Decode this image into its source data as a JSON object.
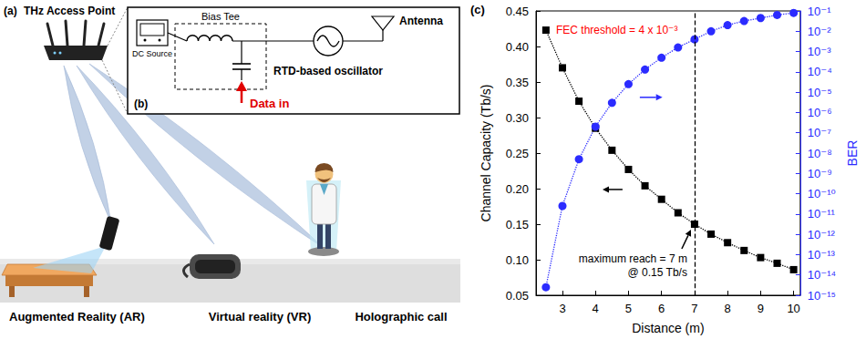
{
  "diagram": {
    "panel_a": {
      "label": "(a)",
      "title": "THz Access Point",
      "devices": [
        "Augmented Reality (AR)",
        "Virtual reality (VR)",
        "Holographic call"
      ]
    },
    "panel_b": {
      "label": "(b)",
      "bias_tee": "Bias Tee",
      "dc_source": "DC Source",
      "oscillator": "RTD-based oscillator",
      "antenna": "Antenna",
      "input": "Data in"
    }
  },
  "chart_data": {
    "type": "line",
    "panel_label": "(c)",
    "x_label": "Distance (m)",
    "y_label": "Channel Capacity (Tb/s)",
    "y2_label": "BER",
    "x": [
      2.5,
      3,
      3.5,
      4,
      4.5,
      5,
      5.5,
      6,
      6.5,
      7,
      7.5,
      8,
      8.5,
      9,
      9.5,
      10
    ],
    "series": [
      {
        "color": "#000000",
        "marker": "square",
        "line_style": "dotted",
        "values": [
          0.423,
          0.37,
          0.323,
          0.285,
          0.254,
          0.227,
          0.204,
          0.185,
          0.166,
          0.15,
          0.136,
          0.124,
          0.113,
          0.103,
          0.095,
          0.086
        ]
      },
      {
        "color": "#2b2bff",
        "marker": "circle",
        "line_style": "dotted",
        "axis": "y2",
        "values": [
          2.5e-15,
          2.5e-11,
          5e-09,
          2e-07,
          3e-06,
          2.5e-05,
          0.00013,
          0.0005,
          0.0016,
          0.004,
          0.01,
          0.02,
          0.032,
          0.045,
          0.063,
          0.08
        ]
      }
    ],
    "xlim": [
      2.2,
      10.2
    ],
    "xticks": [
      3,
      4,
      5,
      6,
      7,
      8,
      9,
      10
    ],
    "ylim": [
      0.05,
      0.45
    ],
    "yticks": [
      0.05,
      {
        "value": 0.1,
        "label": "0.10"
      },
      0.15,
      {
        "value": 0.2,
        "label": "0.20"
      },
      0.25,
      {
        "value": 0.3,
        "label": "0.30"
      },
      0.35,
      {
        "value": 0.4,
        "label": "0.40"
      },
      0.45
    ],
    "y2lim": [
      1e-15,
      0.1
    ],
    "y2ticks": [
      {
        "value": 1e-15,
        "label": "10⁻¹⁵"
      },
      {
        "value": 1e-14,
        "label": "10⁻¹⁴"
      },
      {
        "value": 1e-13,
        "label": "10⁻¹³"
      },
      {
        "value": 1e-12,
        "label": "10⁻¹²"
      },
      {
        "value": 1e-11,
        "label": "10⁻¹¹"
      },
      {
        "value": 1e-10,
        "label": "10⁻¹⁰"
      },
      {
        "value": 1e-09,
        "label": "10⁻⁹"
      },
      {
        "value": 1e-08,
        "label": "10⁻⁸"
      },
      {
        "value": 1e-07,
        "label": "10⁻⁷"
      },
      {
        "value": 1e-06,
        "label": "10⁻⁶"
      },
      {
        "value": 1e-05,
        "label": "10⁻⁵"
      },
      {
        "value": 0.0001,
        "label": "10⁻⁴"
      },
      {
        "value": 0.001,
        "label": "10⁻³"
      },
      {
        "value": 0.01,
        "label": "10⁻²"
      },
      {
        "value": 0.1,
        "label": "10⁻¹"
      }
    ],
    "log": "y2",
    "grid": false,
    "annotations": [
      {
        "text": "FEC threshold = 4 x 10⁻³",
        "y2": 0.004,
        "color": "#ff0000",
        "line_style": "dashed"
      },
      {
        "text_lines": [
          "maximum reach = 7 m",
          "@ 0.15 Tb/s"
        ],
        "x": 7,
        "y": 0.15,
        "color": "#000000",
        "line_style": "dashed"
      }
    ]
  }
}
